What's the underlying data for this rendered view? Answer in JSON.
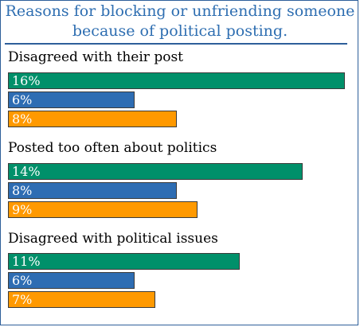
{
  "chart_data": {
    "type": "bar",
    "orientation": "horizontal",
    "title": "Reasons for blocking or unfriending someone because of political posting.",
    "title_lines": [
      "Reasons for blocking or unfriending someone",
      "because of political posting."
    ],
    "categories": [
      "Disagreed with their post",
      "Posted too often about politics",
      "Disagreed with political issues"
    ],
    "series": [
      {
        "values": [
          16,
          14,
          11
        ],
        "labels": [
          "16%",
          "14%",
          "11%"
        ],
        "color": "#00906a"
      },
      {
        "values": [
          6,
          8,
          6
        ],
        "labels": [
          "6%",
          "8%",
          "6%"
        ],
        "color": "#2e6db3"
      },
      {
        "values": [
          8,
          9,
          7
        ],
        "labels": [
          "8%",
          "9%",
          "7%"
        ],
        "color": "#ff9900"
      }
    ],
    "xlim": [
      0,
      16
    ],
    "grid": false,
    "legend": "none"
  },
  "colors": {
    "frame": "#2e5f9a",
    "title": "#2e6eb1"
  }
}
